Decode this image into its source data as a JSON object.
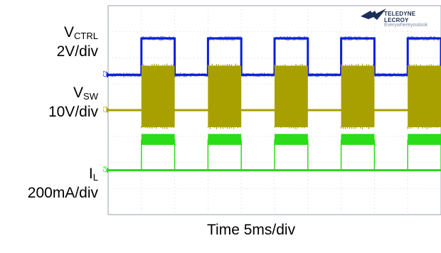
{
  "chart_data": {
    "type": "line",
    "xlabel": "Time 5ms/div",
    "x_divisions": 10,
    "y_divisions": 8,
    "period_div": 2,
    "duty": 0.5,
    "rise_start_div": 1,
    "series": [
      {
        "name": "VCTRL",
        "name_main": "V",
        "name_sub": "CTRL",
        "scale": "2V/div",
        "color": "#0a1fd6",
        "marker": "C2",
        "low_div": 1.35,
        "high_div": 2.75,
        "shape": "square"
      },
      {
        "name": "VSW",
        "name_main": "V",
        "name_sub": "SW",
        "scale": "10V/div",
        "color": "#a8a000",
        "marker": "C1",
        "low_div": 0.0,
        "high_div": 1.7,
        "burst_low_div": -0.65,
        "shape": "burst"
      },
      {
        "name": "IL",
        "name_main": "I",
        "name_sub": "L",
        "scale": "200mA/div",
        "color": "#2bdc18",
        "marker": "C4",
        "low_div": -2.3,
        "high_div": -1.12,
        "band_div": 0.42,
        "shape": "band"
      }
    ]
  },
  "brand": {
    "line1": "TELEDYNE LECROY",
    "line2": "Everywhereyoulook",
    "logo_icon": "teledyne-eagle-icon"
  }
}
